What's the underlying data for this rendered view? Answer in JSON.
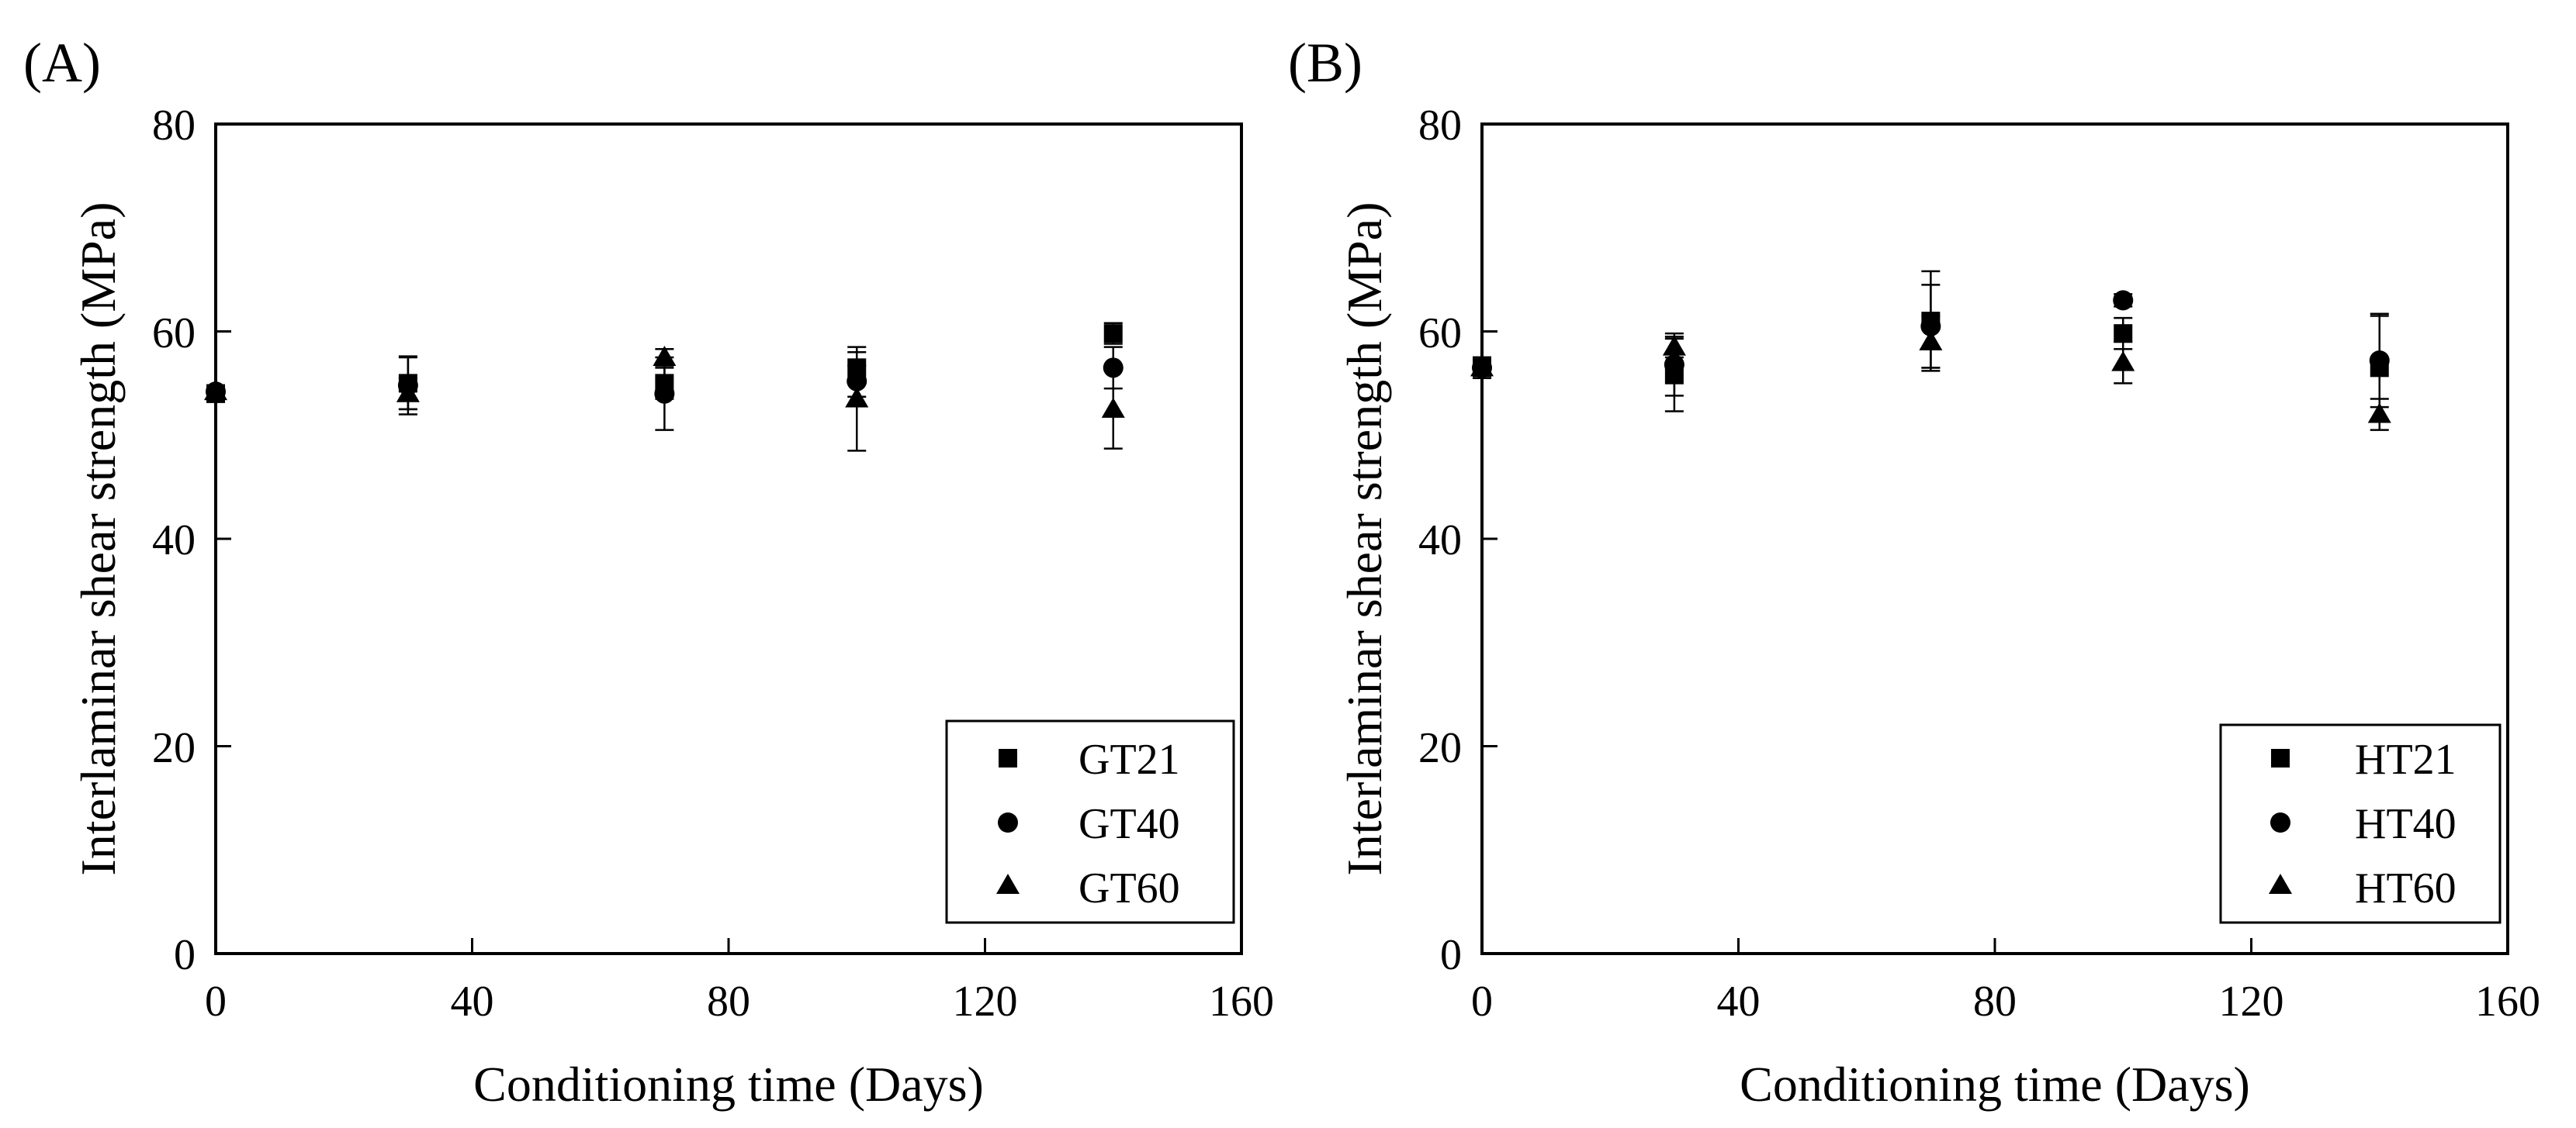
{
  "chart_data": [
    {
      "type": "scatter",
      "panel_label": "(A)",
      "xlabel": "Conditioning time (Days)",
      "ylabel": "Interlaminar shear strength (MPa)",
      "xlim": [
        0,
        160
      ],
      "ylim": [
        0,
        80
      ],
      "xticks": [
        "0",
        "40",
        "80",
        "120",
        "160"
      ],
      "yticks": [
        "0",
        "20",
        "40",
        "60",
        "80"
      ],
      "legend_position": "bottom-right",
      "series": [
        {
          "name": "GT21",
          "marker": "square",
          "x": [
            0,
            30,
            70,
            100,
            140
          ],
          "y": [
            54.0,
            55.0,
            55.0,
            56.5,
            59.8
          ],
          "err": [
            0.8,
            2.5,
            1.5,
            1.5,
            1.0
          ]
        },
        {
          "name": "GT40",
          "marker": "circle",
          "x": [
            0,
            30,
            70,
            100,
            140
          ],
          "y": [
            54.2,
            54.8,
            54.0,
            55.2,
            56.5
          ],
          "err": [
            0.6,
            2.8,
            3.5,
            1.5,
            2.0
          ]
        },
        {
          "name": "GT60",
          "marker": "triangle",
          "x": [
            0,
            30,
            70,
            100,
            140
          ],
          "y": [
            54.2,
            54.0,
            57.5,
            53.5,
            52.5
          ],
          "err": [
            0.6,
            1.5,
            0.8,
            5.0,
            3.8
          ]
        }
      ]
    },
    {
      "type": "scatter",
      "panel_label": "(B)",
      "xlabel": "Conditioning time (Days)",
      "ylabel": "Interlaminar shear strength (MPa)",
      "xlim": [
        0,
        160
      ],
      "ylim": [
        0,
        80
      ],
      "xticks": [
        "0",
        "40",
        "80",
        "120",
        "160"
      ],
      "yticks": [
        "0",
        "20",
        "40",
        "60",
        "80"
      ],
      "legend_position": "bottom-right",
      "series": [
        {
          "name": "HT21",
          "marker": "square",
          "x": [
            0,
            30,
            70,
            100,
            140
          ],
          "y": [
            56.5,
            55.8,
            61.0,
            59.8,
            56.5
          ],
          "err": [
            1.0,
            3.5,
            4.8,
            1.5,
            5.0
          ]
        },
        {
          "name": "HT40",
          "marker": "circle",
          "x": [
            0,
            30,
            70,
            100,
            140
          ],
          "y": [
            56.5,
            56.8,
            60.5,
            63.0,
            57.2
          ],
          "err": [
            1.0,
            3.0,
            4.0,
            0.6,
            4.5
          ]
        },
        {
          "name": "HT60",
          "marker": "triangle",
          "x": [
            0,
            30,
            70,
            100,
            140
          ],
          "y": [
            56.5,
            58.5,
            59.0,
            57.0,
            52.0
          ],
          "err": [
            1.0,
            1.0,
            2.5,
            2.0,
            1.5
          ]
        }
      ]
    }
  ]
}
